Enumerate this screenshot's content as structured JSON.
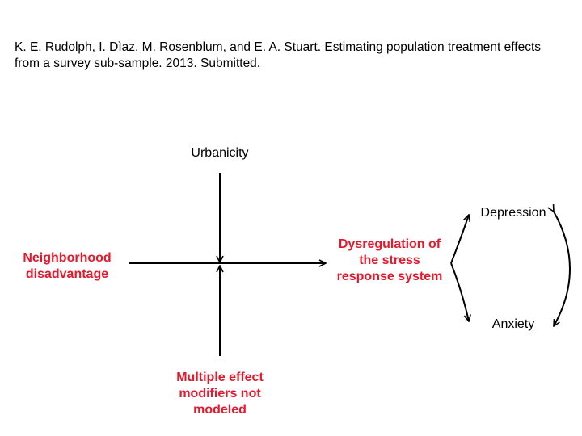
{
  "citation": {
    "line1": "K. E. Rudolph, I. Dìaz, M. Rosenblum, and E. A. Stuart. Estimating population treatment effects",
    "line2": "from a survey sub-sample. 2013. Submitted."
  },
  "nodes": {
    "urbanicity": "Urbanicity",
    "neighborhood_line1": "Neighborhood",
    "neighborhood_line2": "disadvantage",
    "dysregulation_line1": "Dysregulation of",
    "dysregulation_line2": "the stress",
    "dysregulation_line3": "response system",
    "depression": "Depression",
    "anxiety": "Anxiety",
    "modifiers_line1": "Multiple effect",
    "modifiers_line2": "modifiers not",
    "modifiers_line3": "modeled"
  },
  "colors": {
    "emphasis": "#e8182c",
    "text": "#000000",
    "arrow": "#000000"
  }
}
